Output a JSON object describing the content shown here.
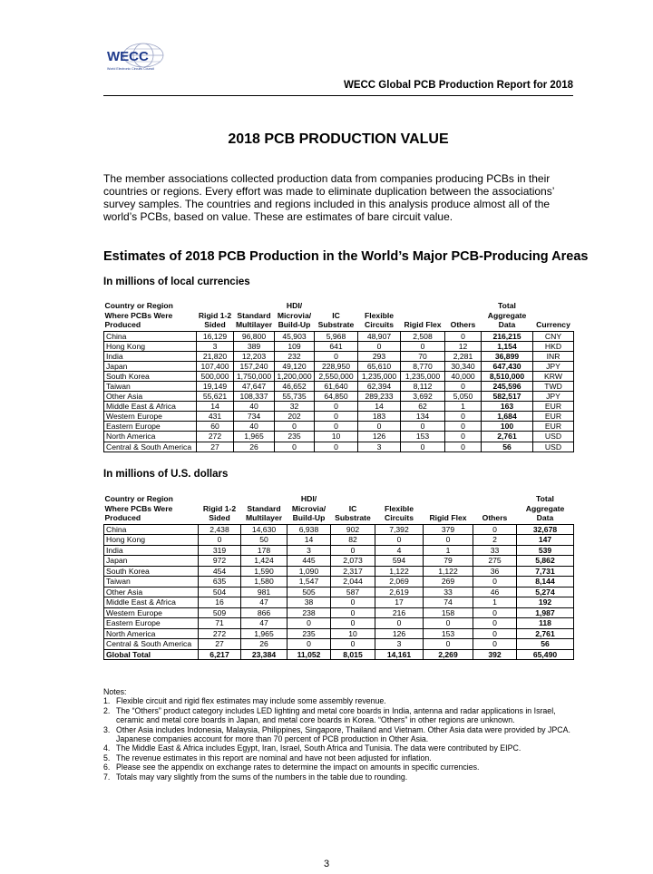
{
  "header": {
    "logo_text": "WECC",
    "logo_subtext": "World Electronic Circuits Council",
    "report_title": "WECC Global PCB Production Report for 2018"
  },
  "title": "2018 PCB PRODUCTION VALUE",
  "intro": "The member associations collected production data from companies producing PCBs in their countries or regions. Every effort was made to eliminate duplication between the associations’ survey samples. The countries and regions included in this analysis produce almost all of the world’s PCBs, based on value. These are estimates of bare circuit value.",
  "section_title": "Estimates of 2018 PCB Production in the World’s Major PCB-Producing Areas",
  "table_local": {
    "subtitle": "In millions of local currencies",
    "headers": [
      [
        "Country or Region",
        "Where PCBs Were",
        "Produced"
      ],
      [
        "",
        "Rigid 1-2",
        "Sided"
      ],
      [
        "",
        "Standard",
        "Multilayer"
      ],
      [
        "HDI/",
        "Microvia/",
        "Build-Up"
      ],
      [
        "",
        "IC",
        "Substrate"
      ],
      [
        "",
        "Flexible",
        "Circuits"
      ],
      [
        "",
        "",
        "Rigid Flex"
      ],
      [
        "",
        "",
        "Others"
      ],
      [
        "Total",
        "Aggregate",
        "Data"
      ],
      [
        "",
        "",
        "Currency"
      ]
    ],
    "rows": [
      [
        "China",
        "16,129",
        "96,800",
        "45,903",
        "5,968",
        "48,907",
        "2,508",
        "0",
        "216,215",
        "CNY"
      ],
      [
        "Hong Kong",
        "3",
        "389",
        "109",
        "641",
        "0",
        "0",
        "12",
        "1,154",
        "HKD"
      ],
      [
        "India",
        "21,820",
        "12,203",
        "232",
        "0",
        "293",
        "70",
        "2,281",
        "36,899",
        "INR"
      ],
      [
        "Japan",
        "107,400",
        "157,240",
        "49,120",
        "228,950",
        "65,610",
        "8,770",
        "30,340",
        "647,430",
        "JPY"
      ],
      [
        "South Korea",
        "500,000",
        "1,750,000",
        "1,200,000",
        "2,550,000",
        "1,235,000",
        "1,235,000",
        "40,000",
        "8,510,000",
        "KRW"
      ],
      [
        "Taiwan",
        "19,149",
        "47,647",
        "46,652",
        "61,640",
        "62,394",
        "8,112",
        "0",
        "245,596",
        "TWD"
      ],
      [
        "Other Asia",
        "55,621",
        "108,337",
        "55,735",
        "64,850",
        "289,233",
        "3,692",
        "5,050",
        "582,517",
        "JPY"
      ],
      [
        "Middle East & Africa",
        "14",
        "40",
        "32",
        "0",
        "14",
        "62",
        "1",
        "163",
        "EUR"
      ],
      [
        "Western Europe",
        "431",
        "734",
        "202",
        "0",
        "183",
        "134",
        "0",
        "1,684",
        "EUR"
      ],
      [
        "Eastern Europe",
        "60",
        "40",
        "0",
        "0",
        "0",
        "0",
        "0",
        "100",
        "EUR"
      ],
      [
        "North America",
        "272",
        "1,965",
        "235",
        "10",
        "126",
        "153",
        "0",
        "2,761",
        "USD"
      ],
      [
        "Central & South America",
        "27",
        "26",
        "0",
        "0",
        "3",
        "0",
        "0",
        "56",
        "USD"
      ]
    ]
  },
  "table_usd": {
    "subtitle": "In millions of U.S. dollars",
    "headers": [
      [
        "Country or Region",
        "Where PCBs Were",
        "Produced"
      ],
      [
        "",
        "Rigid 1-2",
        "Sided"
      ],
      [
        "",
        "Standard",
        "Multilayer"
      ],
      [
        "HDI/",
        "Microvia/",
        "Build-Up"
      ],
      [
        "",
        "IC",
        "Substrate"
      ],
      [
        "",
        "Flexible",
        "Circuits"
      ],
      [
        "",
        "",
        "Rigid Flex"
      ],
      [
        "",
        "",
        "Others"
      ],
      [
        "Total",
        "Aggregate",
        "Data"
      ]
    ],
    "rows": [
      [
        "China",
        "2,438",
        "14,630",
        "6,938",
        "902",
        "7,392",
        "379",
        "0",
        "32,678"
      ],
      [
        "Hong Kong",
        "0",
        "50",
        "14",
        "82",
        "0",
        "0",
        "2",
        "147"
      ],
      [
        "India",
        "319",
        "178",
        "3",
        "0",
        "4",
        "1",
        "33",
        "539"
      ],
      [
        "Japan",
        "972",
        "1,424",
        "445",
        "2,073",
        "594",
        "79",
        "275",
        "5,862"
      ],
      [
        "South Korea",
        "454",
        "1,590",
        "1,090",
        "2,317",
        "1,122",
        "1,122",
        "36",
        "7,731"
      ],
      [
        "Taiwan",
        "635",
        "1,580",
        "1,547",
        "2,044",
        "2,069",
        "269",
        "0",
        "8,144"
      ],
      [
        "Other Asia",
        "504",
        "981",
        "505",
        "587",
        "2,619",
        "33",
        "46",
        "5,274"
      ],
      [
        "Middle East & Africa",
        "16",
        "47",
        "38",
        "0",
        "17",
        "74",
        "1",
        "192"
      ],
      [
        "Western Europe",
        "509",
        "866",
        "238",
        "0",
        "216",
        "158",
        "0",
        "1,987"
      ],
      [
        "Eastern Europe",
        "71",
        "47",
        "0",
        "0",
        "0",
        "0",
        "0",
        "118"
      ],
      [
        "North America",
        "272",
        "1,965",
        "235",
        "10",
        "126",
        "153",
        "0",
        "2,761"
      ],
      [
        "Central & South America",
        "27",
        "26",
        "0",
        "0",
        "3",
        "0",
        "0",
        "56"
      ],
      [
        "Global Total",
        "6,217",
        "23,384",
        "11,052",
        "8,015",
        "14,161",
        "2,269",
        "392",
        "65,490"
      ]
    ]
  },
  "notes": {
    "heading": "Notes:",
    "items": [
      "Flexible circuit and rigid flex estimates may include some assembly revenue.",
      "The “Others” product category includes LED lighting and metal core boards in India, antenna and radar applications in Israel, ceramic and metal core boards in Japan, and metal core boards in Korea. “Others” in other regions are unknown.",
      "Other Asia includes Indonesia, Malaysia, Philippines, Singapore, Thailand and Vietnam. Other Asia data were provided by JPCA. Japanese companies account for more than 70 percent of PCB production in Other Asia.",
      "The Middle East & Africa includes Egypt, Iran, Israel, South Africa and Tunisia. The data were contributed by EIPC.",
      "The revenue estimates in this report are nominal and have not been adjusted for inflation.",
      "Please see the appendix on exchange rates to determine the impact on amounts in specific currencies.",
      "Totals may vary slightly from the sums of the numbers in the table due to rounding."
    ]
  },
  "page_number": "3",
  "colors": {
    "logo_blue": "#1f3b8c",
    "logo_globe": "#8a94b8"
  }
}
